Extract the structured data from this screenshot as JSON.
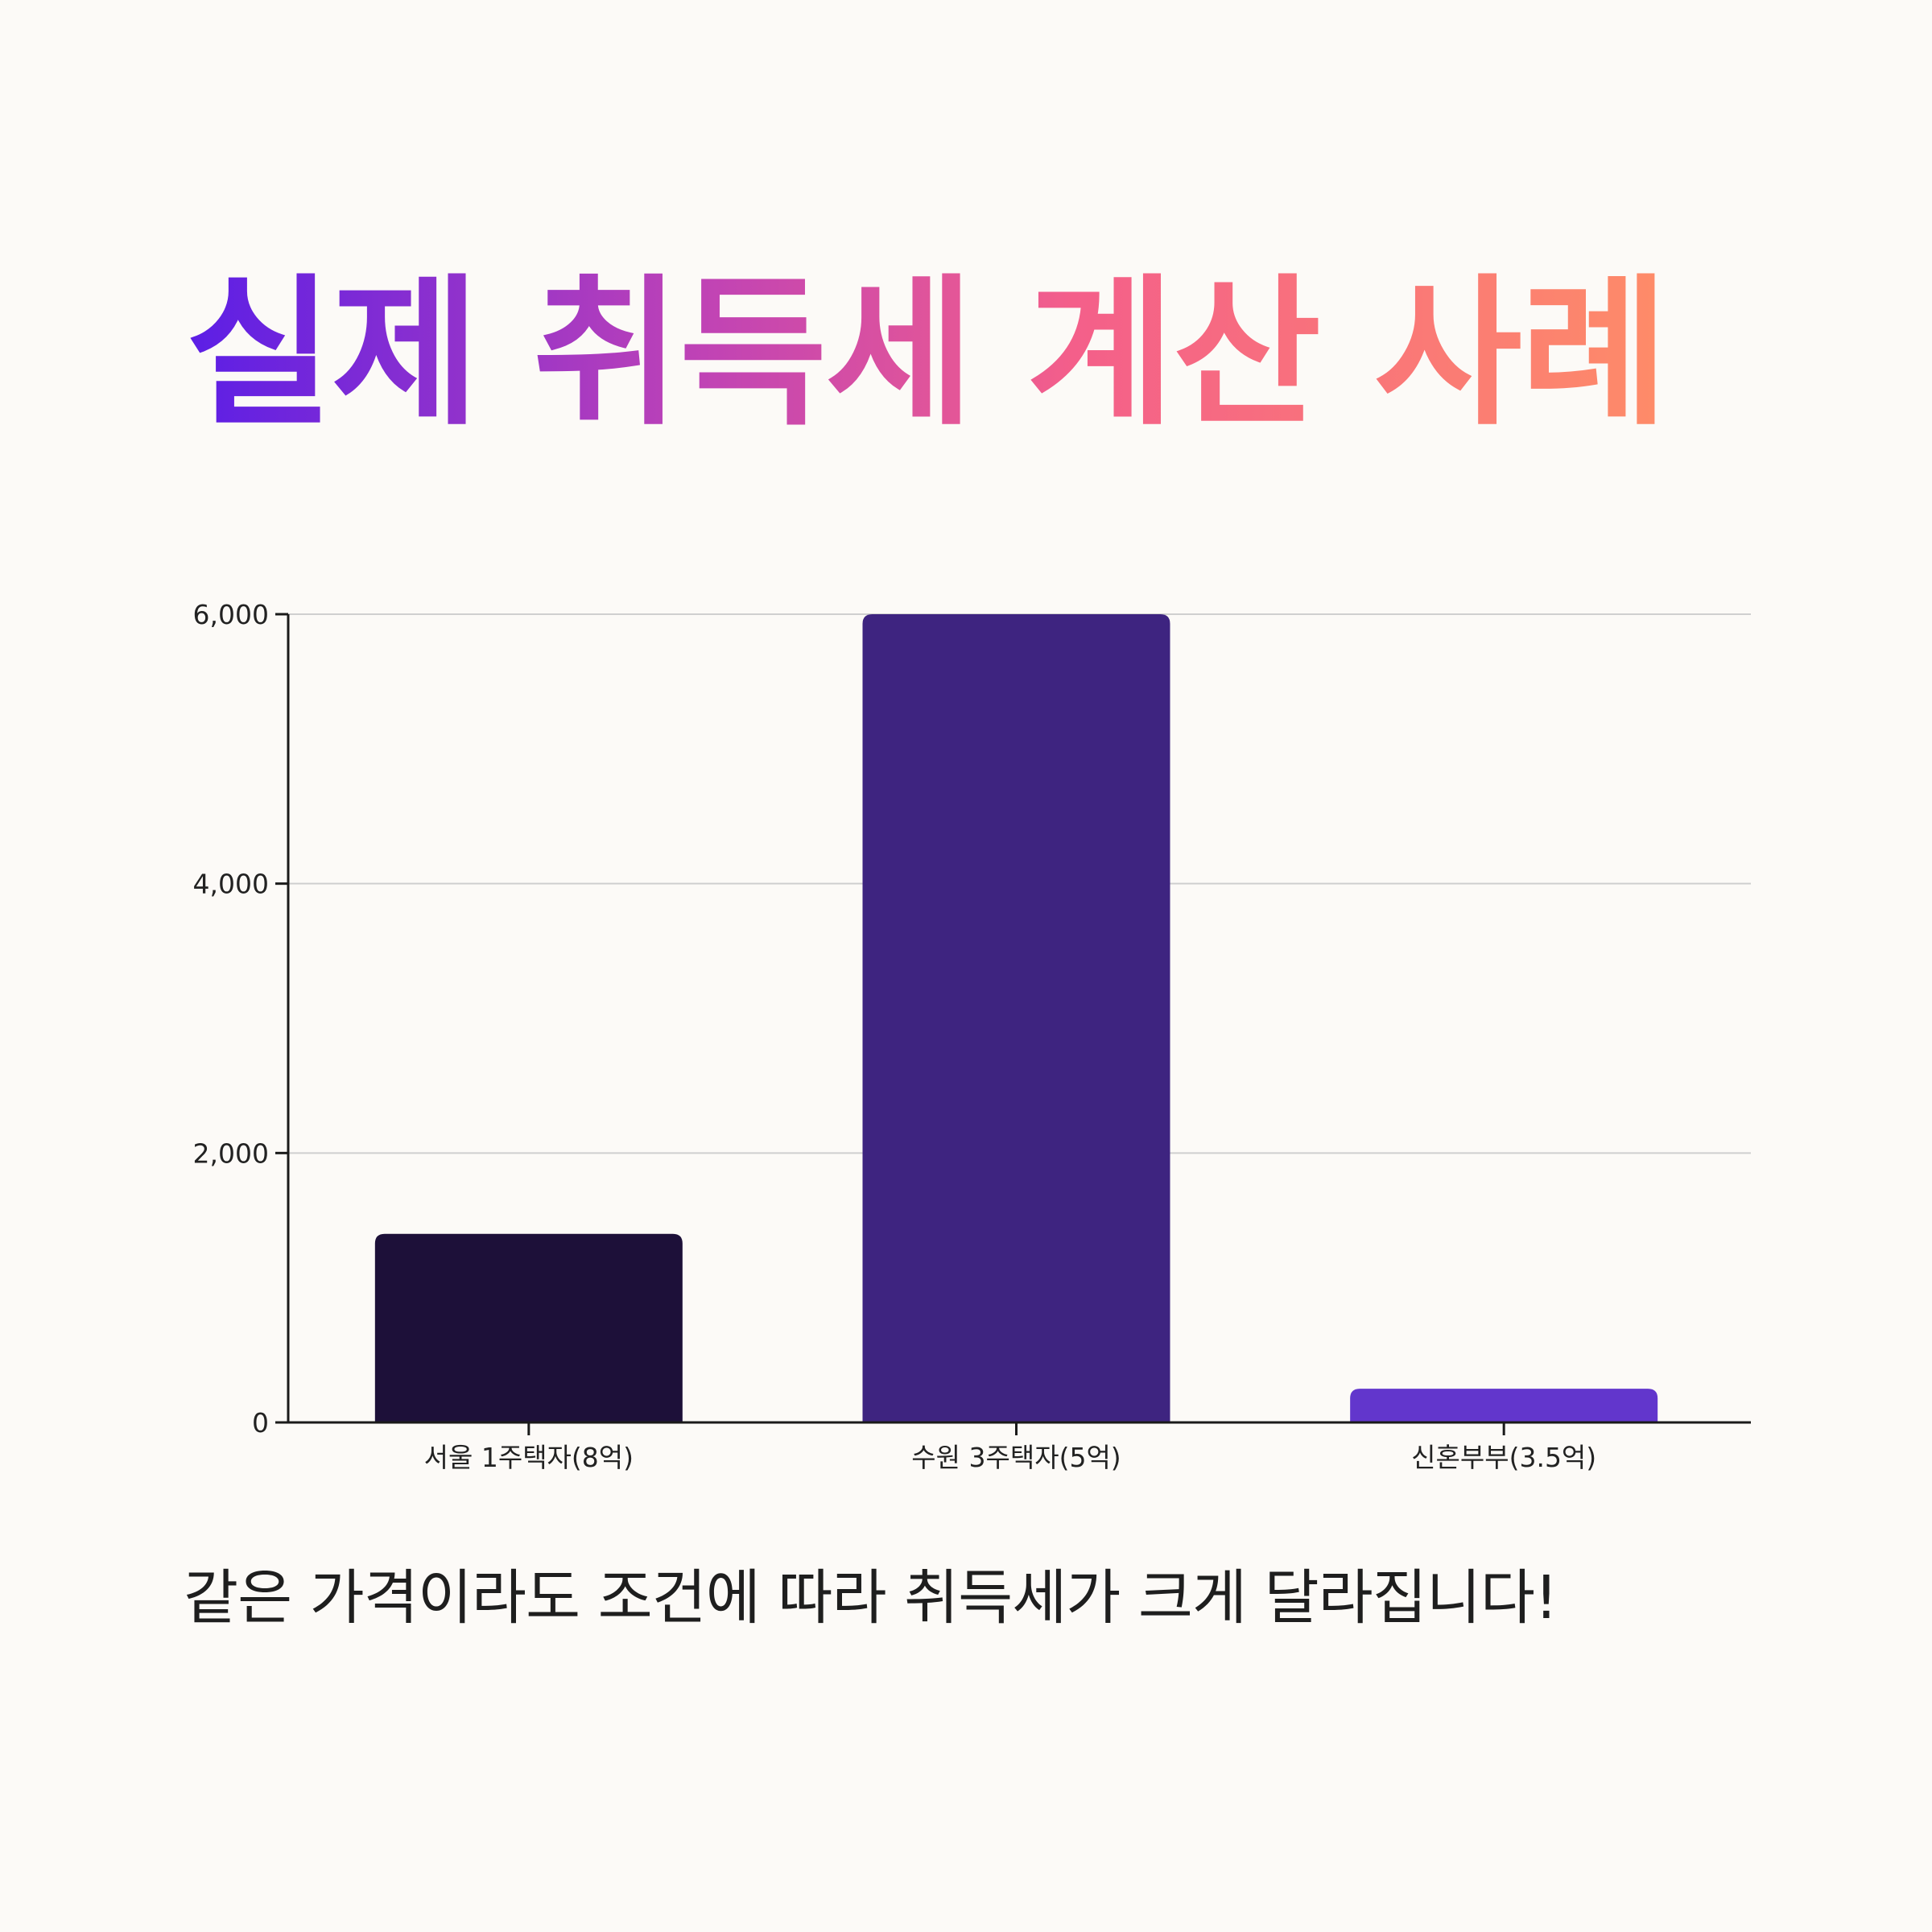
{
  "title": "실제 취득세 계산 사례",
  "caption": "같은 가격이라도 조건에 따라 취득세가 크게 달라집니다!",
  "colors": {
    "background": "#fcfaf7",
    "title_gradient": [
      "#5b1ee6",
      "#c043b5",
      "#f45f8a",
      "#fe8c68"
    ],
    "bars": [
      "#1d1039",
      "#3e2480",
      "#6236cc"
    ],
    "grid": "#cfcfcf",
    "axis": "#1a1a1a"
  },
  "chart_data": {
    "type": "bar",
    "categories": [
      "서울 1주택자(8억)",
      "수원 3주택자(5억)",
      "신혼부부(3.5억)"
    ],
    "values": [
      1400,
      6000,
      250
    ],
    "yticks": [
      0,
      2000,
      4000,
      6000
    ],
    "ytick_labels": [
      "0",
      "2,000",
      "4,000",
      "6,000"
    ],
    "ylim": [
      0,
      6000
    ],
    "grid": true,
    "xlabel": "",
    "ylabel": ""
  }
}
